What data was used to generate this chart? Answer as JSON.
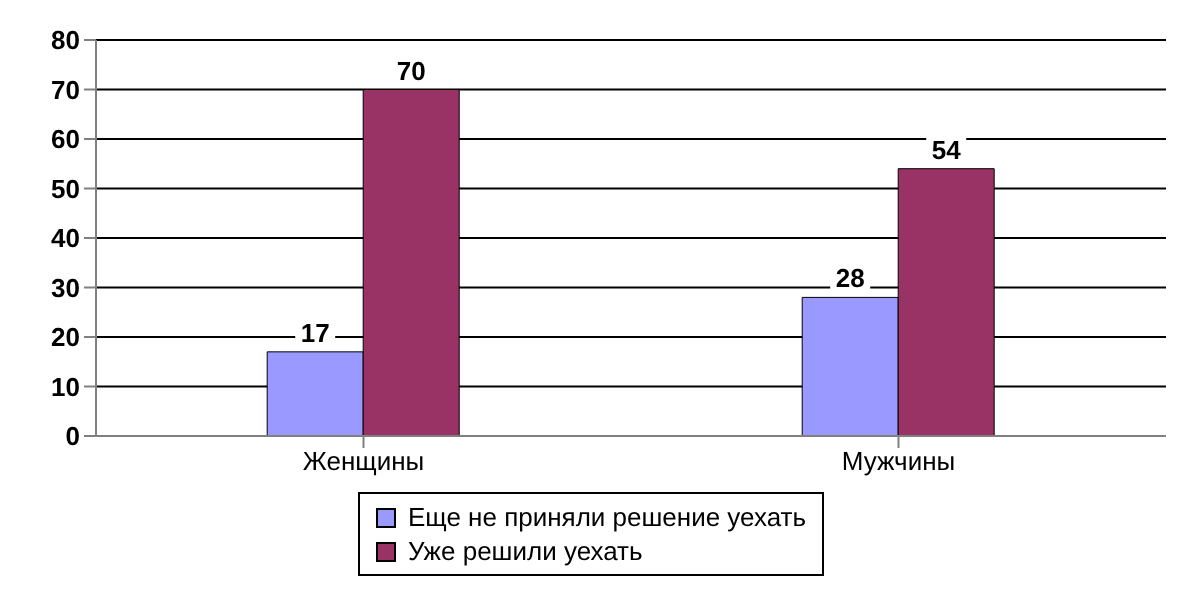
{
  "chart_data": {
    "type": "bar",
    "categories": [
      "Женщины",
      "Мужчины"
    ],
    "series": [
      {
        "name": "Еще не приняли решение уехать",
        "color": "#9999ff",
        "values": [
          17,
          28
        ]
      },
      {
        "name": "Уже решили уехать",
        "color": "#993366",
        "values": [
          70,
          54
        ]
      }
    ],
    "ylim": [
      0,
      80
    ],
    "yticks": [
      0,
      10,
      20,
      30,
      40,
      50,
      60,
      70,
      80
    ],
    "grid": "y",
    "legend": "bottom",
    "data_labels": true
  }
}
